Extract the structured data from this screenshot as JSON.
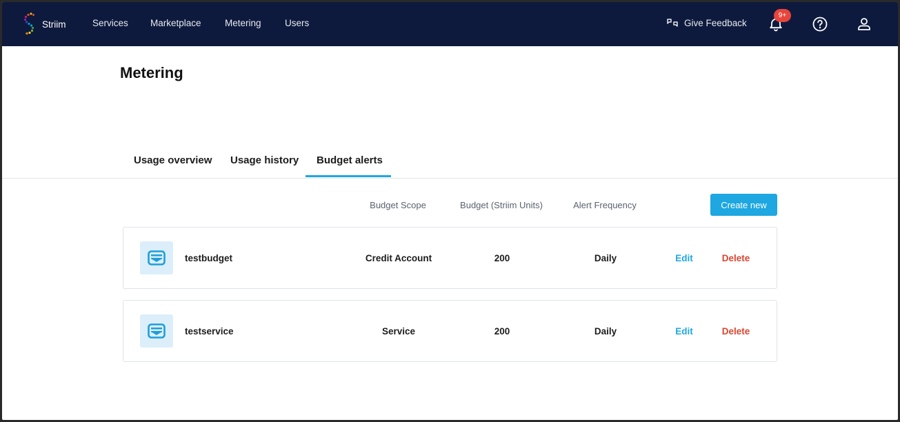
{
  "app": {
    "brand_name": "Striim"
  },
  "nav": {
    "items": [
      {
        "label": "Services"
      },
      {
        "label": "Marketplace"
      },
      {
        "label": "Metering"
      },
      {
        "label": "Users"
      }
    ],
    "feedback_label": "Give Feedback",
    "notification_badge": "9+",
    "icons": [
      "feedback-icon",
      "bell-icon",
      "help-icon",
      "user-icon"
    ]
  },
  "page": {
    "title": "Metering"
  },
  "tabs": [
    {
      "label": "Usage overview",
      "active": false
    },
    {
      "label": "Usage history",
      "active": false
    },
    {
      "label": "Budget alerts",
      "active": true
    }
  ],
  "table": {
    "headers": {
      "scope": "Budget Scope",
      "budget": "Budget (Striim Units)",
      "frequency": "Alert Frequency"
    },
    "create_label": "Create new",
    "rows": [
      {
        "name": "testbudget",
        "scope": "Credit Account",
        "budget": "200",
        "frequency": "Daily",
        "edit": "Edit",
        "delete": "Delete"
      },
      {
        "name": "testservice",
        "scope": "Service",
        "budget": "200",
        "frequency": "Daily",
        "edit": "Edit",
        "delete": "Delete"
      }
    ]
  },
  "colors": {
    "topbar": "#0e1a3d",
    "accent": "#1ea7e0",
    "danger": "#d9452f",
    "badge": "#e8453c"
  }
}
